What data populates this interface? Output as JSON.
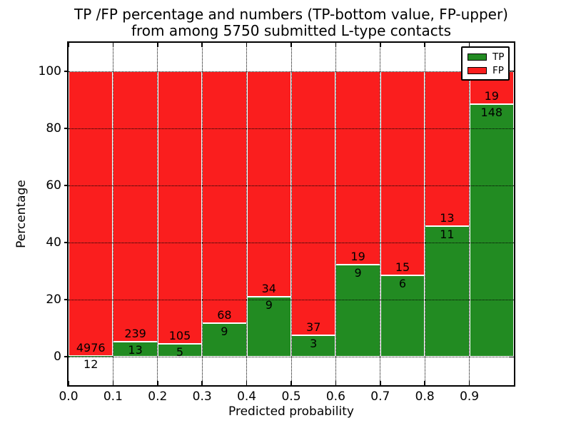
{
  "chart_data": {
    "type": "bar",
    "stacked": true,
    "title": "TP /FP percentage and numbers (TP-bottom value, FP-upper)",
    "subtitle": "from among 5750 submitted L-type contacts",
    "xlabel": "Predicted probability",
    "ylabel": "Percentage",
    "xlim": [
      0,
      1
    ],
    "ylim": [
      -10,
      110
    ],
    "x_tick_labels": [
      "0.0",
      "0.1",
      "0.2",
      "0.3",
      "0.4",
      "0.5",
      "0.6",
      "0.7",
      "0.8",
      "0.9"
    ],
    "y_tick_labels": [
      "0",
      "20",
      "40",
      "60",
      "80",
      "100"
    ],
    "grid": "dotted",
    "grid_color": "#000000",
    "bar_edge_color": "#ffffff",
    "bin_edges": [
      0.0,
      0.1,
      0.2,
      0.3,
      0.4,
      0.5,
      0.6,
      0.7,
      0.8,
      0.9,
      1.0
    ],
    "series": [
      {
        "name": "TP",
        "color": "#228b22",
        "values": [
          12,
          13,
          5,
          9,
          9,
          3,
          9,
          6,
          11,
          148
        ]
      },
      {
        "name": "FP",
        "color": "#fa1e1e",
        "values": [
          4976,
          239,
          105,
          68,
          34,
          37,
          19,
          15,
          13,
          19
        ]
      }
    ],
    "bar_semantics": "green bar height = TP/(TP+FP)*100, red fills remainder up to 100%",
    "legend": {
      "position": "upper right",
      "entries": [
        "TP",
        "FP"
      ]
    }
  }
}
